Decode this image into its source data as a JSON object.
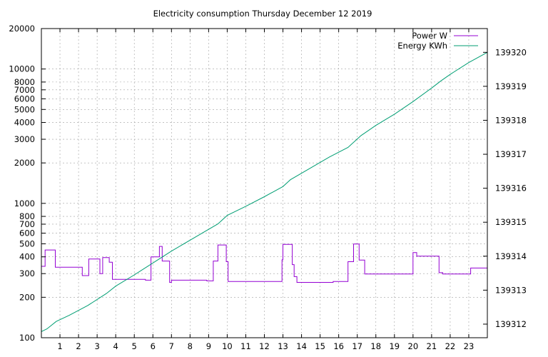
{
  "chart_data": {
    "type": "line",
    "title": "Electricity consumption Thursday December 12 2019",
    "xlabel": "",
    "ylabel": "",
    "y2label": "",
    "grid": true,
    "legend_position": "top-right",
    "x_range": [
      0,
      24
    ],
    "x_ticks": [
      1,
      2,
      3,
      4,
      5,
      6,
      7,
      8,
      9,
      10,
      11,
      12,
      13,
      14,
      15,
      16,
      17,
      18,
      19,
      20,
      21,
      22,
      23
    ],
    "y_scale": "log",
    "y_range": [
      100,
      20000
    ],
    "y_ticks": [
      100,
      200,
      300,
      400,
      500,
      600,
      700,
      800,
      1000,
      2000,
      3000,
      4000,
      5000,
      6000,
      7000,
      8000,
      10000,
      20000
    ],
    "y2_range": [
      139311.6,
      139320.7
    ],
    "y2_ticks": [
      139312,
      139313,
      139314,
      139315,
      139316,
      139317,
      139318,
      139319,
      139320
    ],
    "series": [
      {
        "name": "Power W",
        "axis": "y",
        "color": "#9400d3",
        "step": true,
        "points": [
          [
            0,
            340
          ],
          [
            0.2,
            450
          ],
          [
            0.75,
            335
          ],
          [
            2.2,
            290
          ],
          [
            2.55,
            385
          ],
          [
            3.15,
            300
          ],
          [
            3.3,
            395
          ],
          [
            3.65,
            365
          ],
          [
            3.82,
            272
          ],
          [
            5.6,
            268
          ],
          [
            5.9,
            400
          ],
          [
            6.35,
            478
          ],
          [
            6.5,
            372
          ],
          [
            6.9,
            258
          ],
          [
            7.0,
            268
          ],
          [
            8.9,
            265
          ],
          [
            9.25,
            372
          ],
          [
            9.5,
            490
          ],
          [
            9.95,
            368
          ],
          [
            10.05,
            262
          ],
          [
            12.95,
            380
          ],
          [
            13.0,
            495
          ],
          [
            13.5,
            350
          ],
          [
            13.6,
            285
          ],
          [
            13.75,
            258
          ],
          [
            15.7,
            262
          ],
          [
            16.5,
            368
          ],
          [
            16.8,
            498
          ],
          [
            17.1,
            378
          ],
          [
            17.4,
            298
          ],
          [
            20.0,
            430
          ],
          [
            20.2,
            405
          ],
          [
            21.4,
            305
          ],
          [
            21.6,
            298
          ],
          [
            23.1,
            330
          ],
          [
            24.0,
            340
          ]
        ]
      },
      {
        "name": "Energy KWh",
        "axis": "y2",
        "color": "#009e73",
        "step": false,
        "points": [
          [
            0,
            139311.78
          ],
          [
            0.3,
            139311.86
          ],
          [
            0.8,
            139312.08
          ],
          [
            1.5,
            139312.26
          ],
          [
            2.5,
            139312.55
          ],
          [
            3.5,
            139312.9
          ],
          [
            4.0,
            139313.12
          ],
          [
            5.0,
            139313.45
          ],
          [
            6.0,
            139313.8
          ],
          [
            7.0,
            139314.15
          ],
          [
            8.0,
            139314.47
          ],
          [
            9.5,
            139314.95
          ],
          [
            10.0,
            139315.2
          ],
          [
            11.0,
            139315.47
          ],
          [
            12.0,
            139315.75
          ],
          [
            13.0,
            139316.05
          ],
          [
            13.4,
            139316.25
          ],
          [
            14.5,
            139316.6
          ],
          [
            15.5,
            139316.92
          ],
          [
            16.5,
            139317.2
          ],
          [
            17.2,
            139317.55
          ],
          [
            18.0,
            139317.85
          ],
          [
            19.0,
            139318.18
          ],
          [
            20.0,
            139318.55
          ],
          [
            21.0,
            139318.95
          ],
          [
            21.5,
            139319.16
          ],
          [
            22.0,
            139319.35
          ],
          [
            23.0,
            139319.7
          ],
          [
            24.0,
            139320.0
          ]
        ]
      }
    ]
  }
}
